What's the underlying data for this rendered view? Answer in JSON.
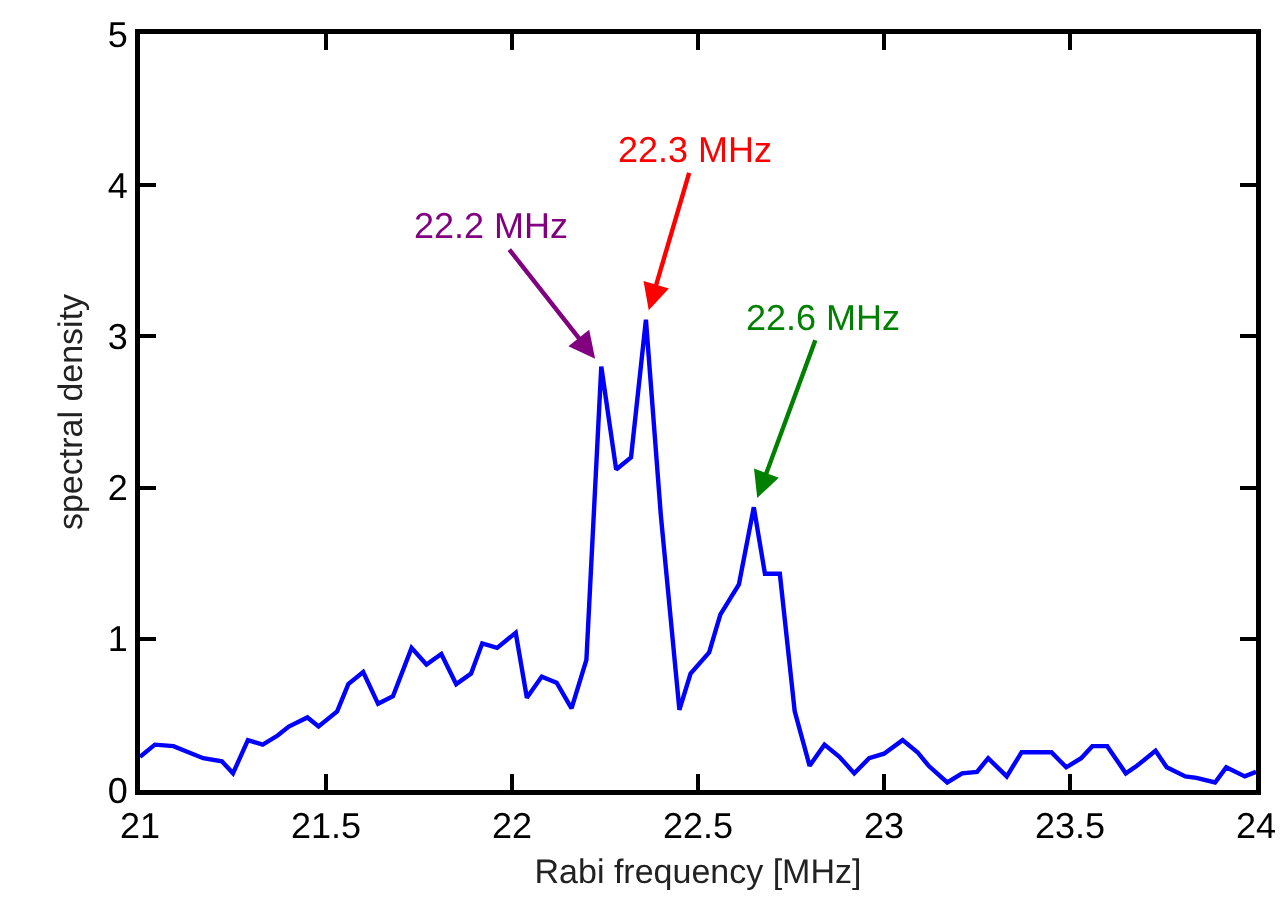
{
  "chart_data": {
    "type": "line",
    "xlabel": "Rabi frequency [MHz]",
    "ylabel": "spectral density",
    "xlim": [
      21,
      24
    ],
    "ylim": [
      0,
      5
    ],
    "xticks": [
      21,
      21.5,
      22,
      22.5,
      23,
      23.5,
      24
    ],
    "yticks": [
      0,
      1,
      2,
      3,
      4,
      5
    ],
    "grid": false,
    "marker": "none",
    "line_style": "solid",
    "series": [
      {
        "color": "#0000ff",
        "x": [
          21.0,
          21.04,
          21.09,
          21.13,
          21.17,
          21.22,
          21.25,
          21.29,
          21.33,
          21.37,
          21.4,
          21.45,
          21.48,
          21.53,
          21.56,
          21.6,
          21.64,
          21.68,
          21.73,
          21.77,
          21.81,
          21.85,
          21.89,
          21.92,
          21.96,
          22.01,
          22.04,
          22.08,
          22.12,
          22.16,
          22.2,
          22.24,
          22.28,
          22.32,
          22.36,
          22.4,
          22.45,
          22.48,
          22.53,
          22.56,
          22.61,
          22.65,
          22.68,
          22.72,
          22.76,
          22.8,
          22.84,
          22.88,
          22.92,
          22.96,
          23.0,
          23.05,
          23.09,
          23.12,
          23.17,
          23.21,
          23.25,
          23.28,
          23.33,
          23.37,
          23.4,
          23.45,
          23.49,
          23.53,
          23.56,
          23.6,
          23.65,
          23.68,
          23.73,
          23.76,
          23.81,
          23.84,
          23.89,
          23.92,
          23.97,
          24.0
        ],
        "values": [
          0.22,
          0.3,
          0.29,
          0.25,
          0.21,
          0.19,
          0.11,
          0.33,
          0.3,
          0.36,
          0.42,
          0.48,
          0.42,
          0.52,
          0.7,
          0.78,
          0.57,
          0.62,
          0.94,
          0.83,
          0.9,
          0.7,
          0.77,
          0.97,
          0.94,
          1.04,
          0.61,
          0.75,
          0.71,
          0.54,
          0.86,
          2.8,
          2.12,
          2.2,
          3.11,
          1.82,
          0.53,
          0.77,
          0.91,
          1.16,
          1.36,
          1.87,
          1.43,
          1.43,
          0.52,
          0.16,
          0.3,
          0.22,
          0.11,
          0.21,
          0.24,
          0.33,
          0.25,
          0.16,
          0.05,
          0.11,
          0.12,
          0.21,
          0.09,
          0.25,
          0.25,
          0.25,
          0.15,
          0.21,
          0.29,
          0.29,
          0.11,
          0.16,
          0.26,
          0.15,
          0.09,
          0.08,
          0.05,
          0.15,
          0.09,
          0.12
        ]
      }
    ],
    "annotations": [
      {
        "text": "22.2 MHz",
        "x": 22.24,
        "y": 2.8
      },
      {
        "text": "22.3 MHz",
        "x": 22.36,
        "y": 3.11
      },
      {
        "text": "22.6 MHz",
        "x": 22.65,
        "y": 1.87
      }
    ]
  }
}
